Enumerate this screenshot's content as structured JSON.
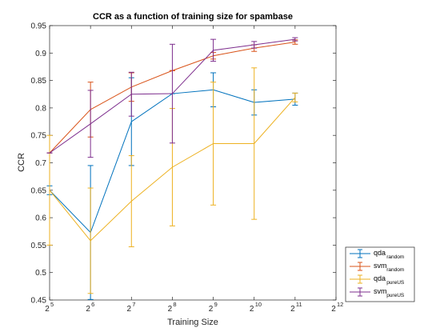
{
  "chart_data": {
    "type": "line",
    "title": "CCR as a function of training size for spambase",
    "xlabel": "Training Size",
    "ylabel": "CCR",
    "x_scale": "log2",
    "x_ticks": [
      32,
      64,
      128,
      256,
      512,
      1024,
      2048,
      4096
    ],
    "x_tick_labels": [
      {
        "base": "2",
        "exp": "5"
      },
      {
        "base": "2",
        "exp": "6"
      },
      {
        "base": "2",
        "exp": "7"
      },
      {
        "base": "2",
        "exp": "8"
      },
      {
        "base": "2",
        "exp": "9"
      },
      {
        "base": "2",
        "exp": "10"
      },
      {
        "base": "2",
        "exp": "11"
      },
      {
        "base": "2",
        "exp": "12"
      }
    ],
    "xlim": [
      32,
      4096
    ],
    "ylim": [
      0.45,
      0.95
    ],
    "y_ticks": [
      0.45,
      0.5,
      0.55,
      0.6,
      0.65,
      0.7,
      0.75,
      0.8,
      0.85,
      0.9,
      0.95
    ],
    "y_tick_labels": [
      "0.45",
      "0.5",
      "0.55",
      "0.6",
      "0.65",
      "0.7",
      "0.75",
      "0.8",
      "0.85",
      "0.9",
      "0.95"
    ],
    "grid": false,
    "legend_position": "bottom-right outside",
    "x": [
      32,
      64,
      128,
      256,
      512,
      1024,
      2048
    ],
    "series": [
      {
        "label_main": "qda",
        "label_sub": "random",
        "color": "#0072BD",
        "values": [
          0.65,
          0.573,
          0.775,
          0.826,
          0.833,
          0.81,
          0.816
        ],
        "err": [
          0.008,
          0.122,
          0.08,
          0.0,
          0.031,
          0.023,
          0.011
        ]
      },
      {
        "label_main": "svm",
        "label_sub": "random",
        "color": "#D95319",
        "values": [
          0.718,
          0.797,
          0.838,
          0.868,
          0.895,
          0.909,
          0.92
        ],
        "err": [
          0.0,
          0.05,
          0.026,
          0.0,
          0.006,
          0.006,
          0.004
        ]
      },
      {
        "label_main": "qda",
        "label_sub": "pureUS",
        "color": "#EDB120",
        "values": [
          0.65,
          0.558,
          0.63,
          0.692,
          0.735,
          0.735,
          0.819
        ],
        "err": [
          0.1,
          0.096,
          0.083,
          0.107,
          0.112,
          0.138,
          0.008
        ]
      },
      {
        "label_main": "svm",
        "label_sub": "pureUS",
        "color": "#7E2F8E",
        "values": [
          0.718,
          0.771,
          0.825,
          0.826,
          0.905,
          0.915,
          0.925
        ],
        "err": [
          0.0,
          0.061,
          0.04,
          0.09,
          0.02,
          0.006,
          0.003
        ]
      }
    ]
  }
}
